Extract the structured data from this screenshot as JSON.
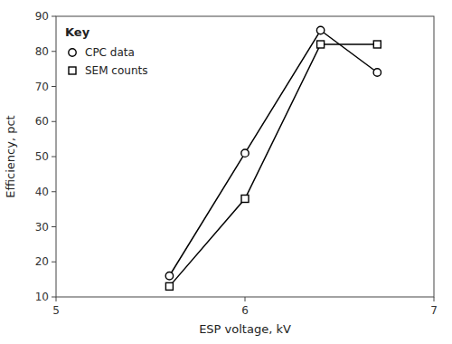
{
  "chart_data": {
    "type": "line",
    "xlabel": "ESP voltage, kV",
    "ylabel": "Efficiency, pct",
    "x": [
      5.6,
      6.0,
      6.4,
      6.7
    ],
    "series": [
      {
        "name": "CPC data",
        "color": "#000000",
        "marker": "circle",
        "values": [
          16,
          51,
          86,
          74
        ]
      },
      {
        "name": "SEM counts",
        "color": "#000000",
        "marker": "square",
        "values": [
          13,
          38,
          82,
          82
        ]
      }
    ],
    "xlim": [
      5,
      7
    ],
    "ylim": [
      10,
      90
    ],
    "xticks": [
      5,
      6,
      7
    ],
    "yticks": [
      10,
      20,
      30,
      40,
      50,
      60,
      70,
      80,
      90
    ],
    "legend": "upper left",
    "legend_title": "Key",
    "grid": false
  }
}
